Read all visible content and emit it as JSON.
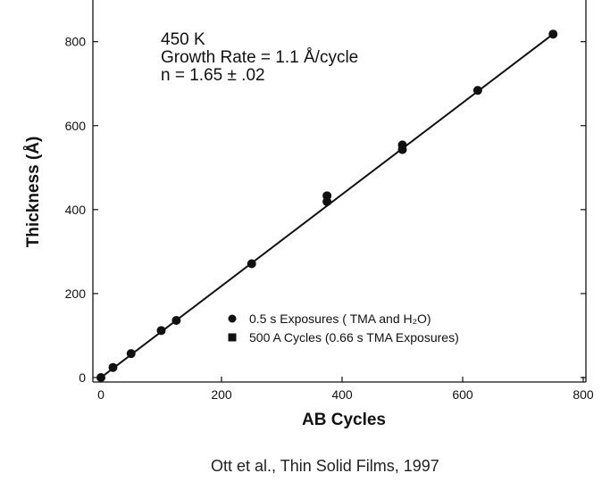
{
  "chart_data": {
    "type": "scatter",
    "title": "",
    "xlabel": "AB Cycles",
    "ylabel": "Thickness (Å)",
    "xlim": [
      0,
      800
    ],
    "ylim": [
      0,
      860
    ],
    "x_ticks": [
      0,
      200,
      400,
      600,
      800
    ],
    "y_ticks": [
      0,
      200,
      400,
      600,
      800
    ],
    "x_tick_labels": [
      "0",
      "200",
      "400",
      "600",
      "800"
    ],
    "y_tick_labels": [
      "0",
      "200",
      "400",
      "600",
      "800"
    ],
    "grid": false,
    "legend_position": "bottom-right",
    "annotations": [
      "450 K",
      "Growth Rate = 1.1 Å/cycle",
      "n = 1.65 ± .02"
    ],
    "series": [
      {
        "name": "0.5 s Exposures ( TMA and H₂O)",
        "marker": "circle",
        "x": [
          0,
          20,
          50,
          100,
          125,
          250,
          375,
          375,
          500,
          500,
          625,
          750
        ],
        "y": [
          0,
          24,
          57,
          112,
          136,
          271,
          419,
          433,
          543,
          554,
          684,
          818
        ]
      },
      {
        "name": "500 A Cycles (0.66 s TMA Exposures)",
        "marker": "square",
        "x": [],
        "y": []
      }
    ],
    "fit_line": {
      "x": [
        0,
        750
      ],
      "y": [
        0,
        818
      ]
    }
  },
  "citation": "Ott et al., Thin Solid Films, 1997"
}
